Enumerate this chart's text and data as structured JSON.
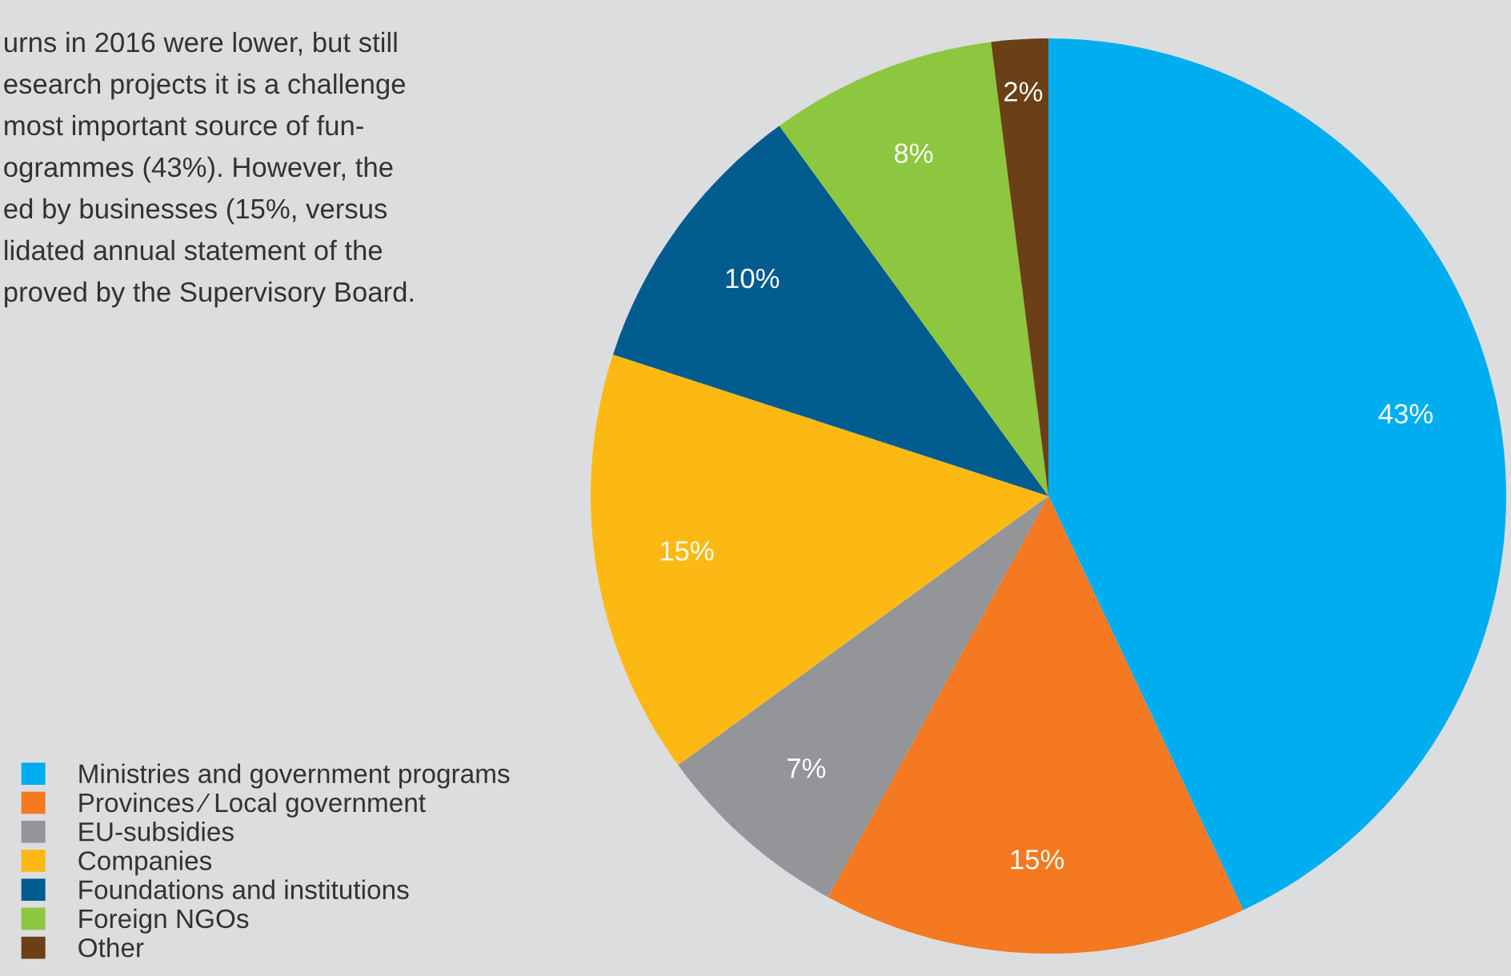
{
  "chart_data": {
    "type": "pie",
    "categories": [
      "Ministries and government programs",
      "Provinces ⁄ Local government",
      "EU-subsidies",
      "Companies",
      "Foundations and institutions",
      "Foreign NGOs",
      "Other"
    ],
    "values": [
      43,
      15,
      7,
      15,
      10,
      8,
      2
    ],
    "value_labels": [
      "43%",
      "15%",
      "7%",
      "15%",
      "10%",
      "8%",
      "2%"
    ],
    "colors": [
      "#00aeef",
      "#f47920",
      "#939598",
      "#fdb913",
      "#005b8f",
      "#8dc63f",
      "#6b4016"
    ],
    "legend": "bottom left",
    "annotations": [
      "urns in 2016 were lower, but still",
      "esearch projects it is a challenge",
      "most important source of fun-",
      "ogrammes (43%). However, the",
      "ed by businesses (15%, versus",
      "lidated annual statement of the",
      "proved by the Supervisory Board."
    ]
  }
}
